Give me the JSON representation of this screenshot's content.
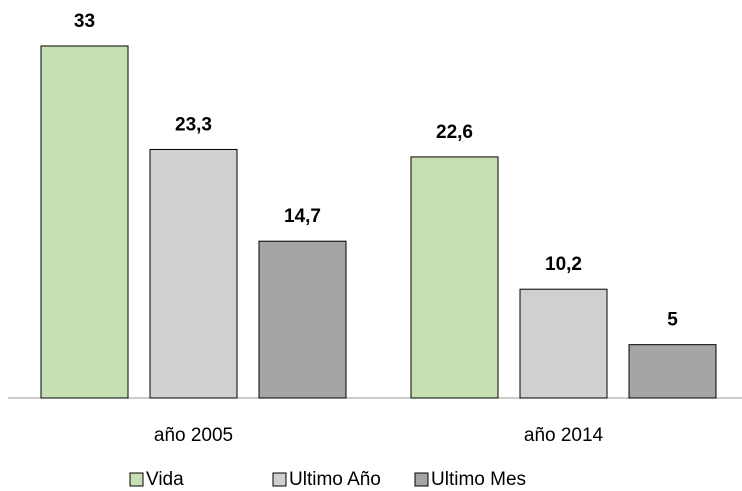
{
  "chart_data": {
    "type": "bar",
    "categories": [
      "año 2005",
      "año 2014"
    ],
    "series": [
      {
        "name": "Vida",
        "color": "#c6e0b4",
        "values": [
          33,
          22.6
        ],
        "value_labels": [
          "33",
          "22,6"
        ]
      },
      {
        "name": "Ultimo Año",
        "color": "#d0d0d0",
        "values": [
          23.3,
          10.2
        ],
        "value_labels": [
          "23,3",
          "10,2"
        ]
      },
      {
        "name": "Ultimo Mes",
        "color": "#a5a5a5",
        "values": [
          14.7,
          5
        ],
        "value_labels": [
          "14,7",
          "5"
        ]
      }
    ],
    "ylim": [
      0,
      33
    ],
    "legend": "bottom"
  }
}
